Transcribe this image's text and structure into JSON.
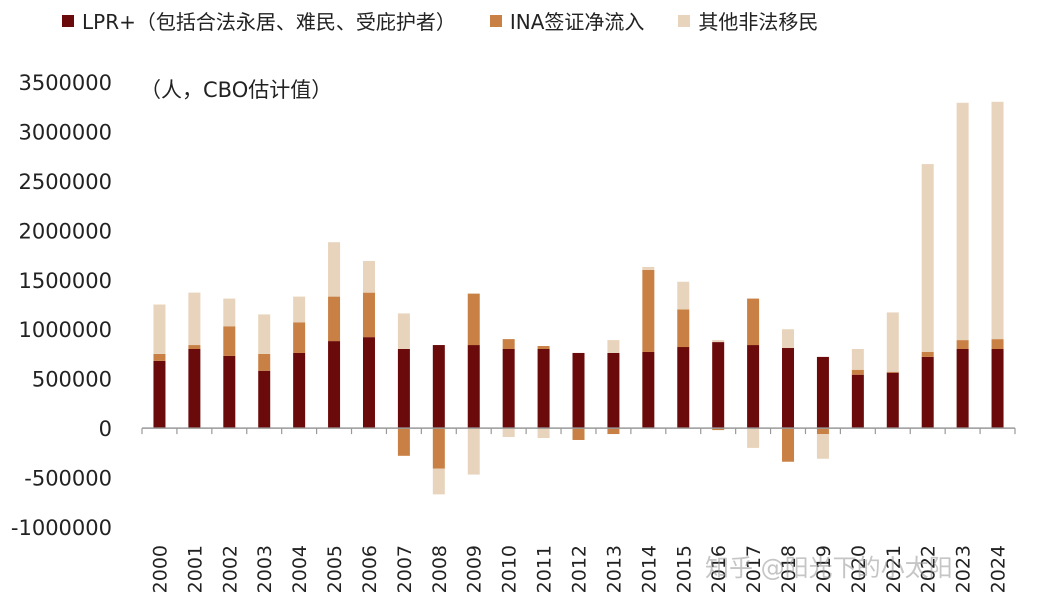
{
  "legend": [
    {
      "label": "LPR+（包括合法永居、难民、受庇护者）",
      "color": "#6b0a0a"
    },
    {
      "label": "INA签证净流入",
      "color": "#c98044"
    },
    {
      "label": "其他非法移民",
      "color": "#e8d4bc"
    }
  ],
  "unit_label": "（人，CBO估计值）",
  "watermark": "知乎 @阳光下的小太阳",
  "chart_data": {
    "type": "bar",
    "stacked": true,
    "title": "",
    "xlabel": "",
    "ylabel": "",
    "ylim": [
      -1000000,
      3500000
    ],
    "yticks": [
      3500000,
      3000000,
      2500000,
      2000000,
      1500000,
      1000000,
      500000,
      0,
      -500000,
      -1000000
    ],
    "ytick_labels": [
      "3500000",
      "3000000",
      "2500000",
      "2000000",
      "1500000",
      "1000000",
      "500000",
      "0",
      "-500000",
      "-1000000"
    ],
    "grid": false,
    "legend_position": "top",
    "categories": [
      "2000",
      "2001",
      "2002",
      "2003",
      "2004",
      "2005",
      "2006",
      "2007",
      "2008",
      "2009",
      "2010",
      "2011",
      "2012",
      "2013",
      "2014",
      "2015",
      "2016",
      "2017",
      "2018",
      "2019",
      "2020",
      "2021",
      "2022",
      "2023",
      "2024"
    ],
    "series": [
      {
        "name": "LPR+（包括合法永居、难民、受庇护者）",
        "color": "#6b0a0a",
        "values": [
          680000,
          800000,
          730000,
          580000,
          760000,
          880000,
          920000,
          800000,
          840000,
          840000,
          800000,
          800000,
          760000,
          760000,
          770000,
          820000,
          870000,
          840000,
          810000,
          720000,
          540000,
          560000,
          720000,
          800000,
          800000
        ]
      },
      {
        "name": "INA签证净流入",
        "color": "#c98044",
        "values": [
          70000,
          40000,
          300000,
          170000,
          310000,
          450000,
          450000,
          -280000,
          -410000,
          520000,
          100000,
          30000,
          -120000,
          -60000,
          830000,
          380000,
          -20000,
          470000,
          -340000,
          -60000,
          50000,
          10000,
          50000,
          90000,
          100000
        ]
      },
      {
        "name": "其他非法移民",
        "color": "#e8d4bc",
        "values": [
          500000,
          530000,
          280000,
          400000,
          260000,
          550000,
          320000,
          360000,
          -260000,
          -470000,
          -90000,
          -100000,
          0,
          130000,
          30000,
          280000,
          20000,
          -200000,
          190000,
          -250000,
          210000,
          600000,
          1900000,
          2400000,
          2400000
        ]
      }
    ]
  }
}
